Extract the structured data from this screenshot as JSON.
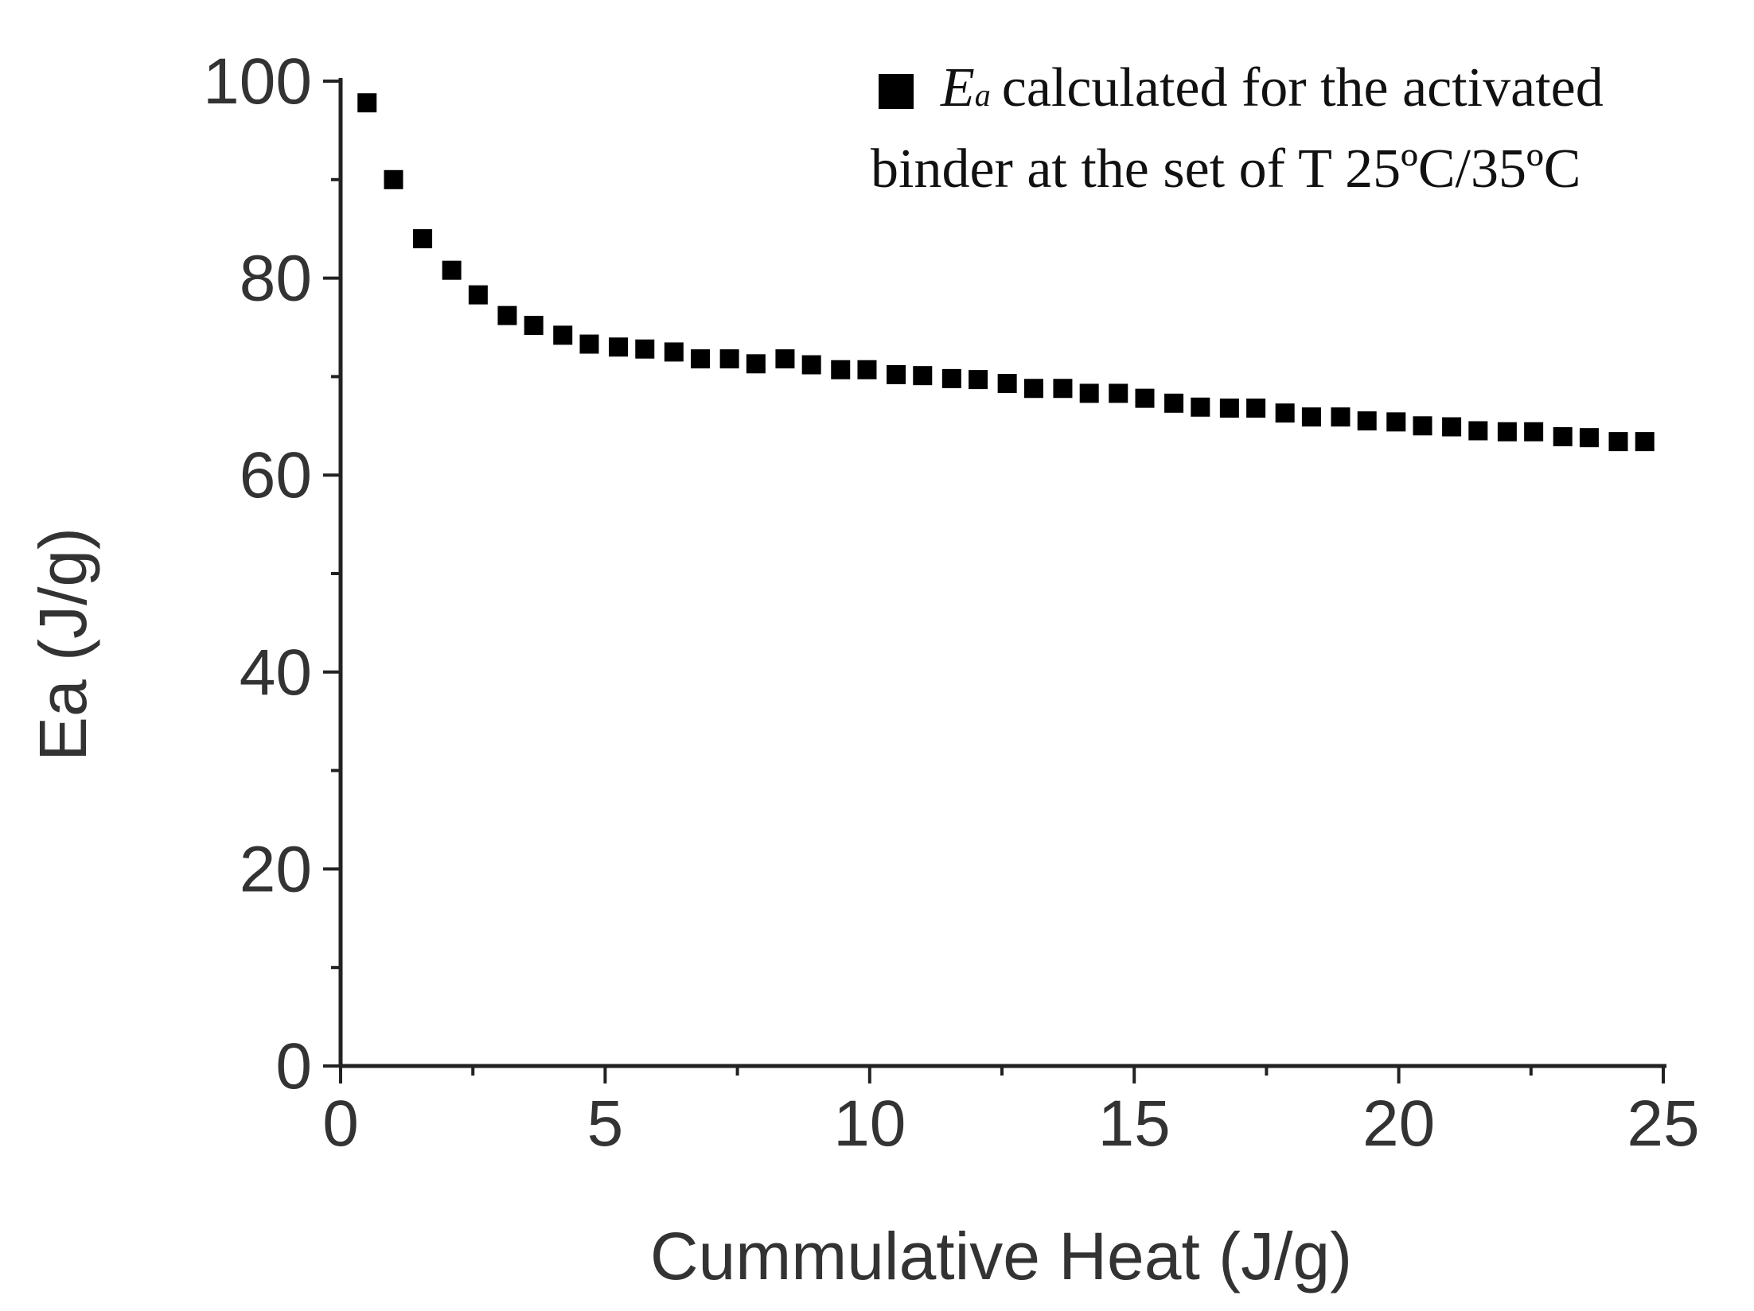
{
  "chart_data": {
    "type": "scatter",
    "title": "",
    "xlabel": "Cummulative Heat (J/g)",
    "ylabel": "Ea (J/g)",
    "xlim": [
      0,
      25
    ],
    "ylim": [
      0,
      100
    ],
    "x_ticks": [
      0,
      5,
      10,
      15,
      20,
      25
    ],
    "y_ticks": [
      0,
      20,
      40,
      60,
      80,
      100
    ],
    "x_tick_labels": [
      "0",
      "5",
      "10",
      "15",
      "20",
      "25"
    ],
    "y_tick_labels": [
      "0",
      "20",
      "40",
      "60",
      "80",
      "100"
    ],
    "grid": false,
    "legend_position": "top-right",
    "marker": "square",
    "marker_color": "#000000",
    "series": [
      {
        "name": "Ea calculated for the activated binder at the set of T 25ºC/35ºC",
        "x": [
          0.5,
          1.0,
          1.55,
          2.1,
          2.6,
          3.15,
          3.65,
          4.2,
          4.7,
          5.25,
          5.75,
          6.3,
          6.8,
          7.35,
          7.85,
          8.4,
          8.9,
          9.45,
          9.95,
          10.5,
          11.0,
          11.55,
          12.05,
          12.6,
          13.1,
          13.65,
          14.15,
          14.7,
          15.2,
          15.75,
          16.25,
          16.8,
          17.3,
          17.85,
          18.35,
          18.9,
          19.4,
          19.95,
          20.45,
          21.0,
          21.5,
          22.05,
          22.55,
          23.1,
          23.6,
          24.15,
          24.65
        ],
        "y": [
          97.8,
          90.0,
          84.0,
          80.8,
          78.3,
          76.2,
          75.2,
          74.2,
          73.3,
          73.0,
          72.8,
          72.5,
          71.8,
          71.8,
          71.3,
          71.8,
          71.2,
          70.7,
          70.7,
          70.2,
          70.1,
          69.8,
          69.7,
          69.3,
          68.8,
          68.8,
          68.3,
          68.3,
          67.8,
          67.3,
          66.9,
          66.8,
          66.8,
          66.3,
          65.9,
          65.9,
          65.5,
          65.4,
          65.0,
          64.9,
          64.5,
          64.4,
          64.4,
          63.9,
          63.8,
          63.4,
          63.4
        ]
      }
    ],
    "legend": {
      "symbol": "■",
      "italic_part": "E",
      "subscript_part": "a",
      "line1": "calculated for the activated",
      "line2": "binder at the set of T 25ºC/35ºC"
    }
  }
}
